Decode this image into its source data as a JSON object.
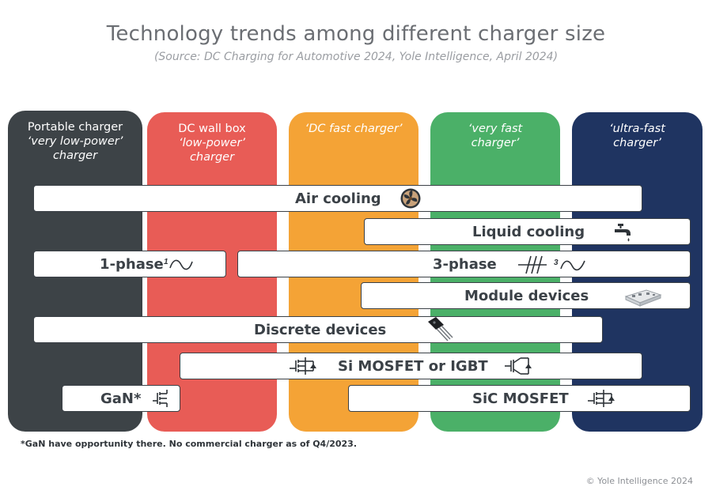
{
  "title": "Technology trends among different charger size",
  "subtitle": "(Source: DC Charging for Automotive 2024, Yole Intelligence, April 2024)",
  "columns": [
    {
      "name": "Portable charger",
      "sub": "‘very low-power’ charger",
      "color": "#3d4347"
    },
    {
      "name": "DC wall box",
      "sub": "‘low-power’ charger",
      "color": "#e85c56"
    },
    {
      "name": "",
      "sub": "‘DC fast charger’",
      "color": "#f4a336"
    },
    {
      "name": "",
      "sub": "‘very fast charger’",
      "color": "#4bb068"
    },
    {
      "name": "",
      "sub": "‘ultra-fast charger’",
      "color": "#1f3461"
    }
  ],
  "bars": {
    "air_cooling": "Air cooling",
    "liquid_cooling": "Liquid cooling",
    "one_phase": "1-phase",
    "three_phase": "3-phase",
    "module_devices": "Module devices",
    "discrete_devices": "Discrete devices",
    "si_mosfet_igbt": "Si MOSFET or IGBT",
    "gan": "GaN*",
    "sic_mosfet": "SiC MOSFET"
  },
  "phase_marks": {
    "one": "1",
    "three": "3"
  },
  "icons": [
    "fan-icon",
    "water-tap-icon",
    "single-phase-icon",
    "three-phase-icon",
    "power-module-icon",
    "discrete-transistor-icon",
    "mosfet-symbol-icon",
    "igbt-symbol-icon"
  ],
  "footnote": "*GaN have opportunity there. No commercial charger as of Q4/2023.",
  "copyright": "© Yole Intelligence 2024"
}
